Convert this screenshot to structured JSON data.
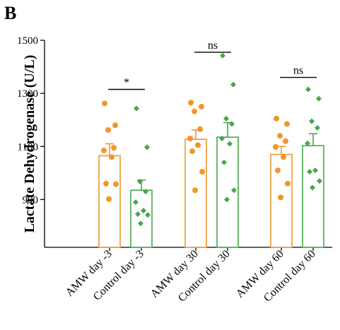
{
  "panel_label": "B",
  "chart_data": {
    "type": "bar",
    "ylabel": "Lactate Dehydrogenase (U/L)",
    "xlabel": "",
    "ylim": [
      720,
      1500
    ],
    "yticks": [
      900,
      1100,
      1300,
      1500
    ],
    "grid": false,
    "categories": [
      "AMW day -3",
      "Control day -3",
      "AMW day 30",
      "Control day 30",
      "AMW day 60",
      "Control day 60"
    ],
    "bars": [
      {
        "category": "AMW day -3",
        "group": "AMW",
        "mean": 1065,
        "sem": 45,
        "points": [
          1262,
          1180,
          1162,
          1095,
          1085,
          1060,
          960,
          958,
          902
        ]
      },
      {
        "category": "Control day -3",
        "group": "Control",
        "mean": 935,
        "sem": 38,
        "points": [
          1243,
          1097,
          968,
          930,
          890,
          858,
          845,
          842,
          810
        ]
      },
      {
        "category": "AMW day 30",
        "group": "AMW",
        "mean": 1127,
        "sem": 35,
        "points": [
          1265,
          1250,
          1232,
          1165,
          1130,
          1105,
          1082,
          1005,
          935
        ]
      },
      {
        "category": "Control day 30",
        "group": "Control",
        "mean": 1135,
        "sem": 55,
        "points": [
          1442,
          1333,
          1205,
          1185,
          1130,
          1110,
          1040,
          935,
          900
        ]
      },
      {
        "category": "AMW day 60",
        "group": "AMW",
        "mean": 1070,
        "sem": 30,
        "points": [
          1205,
          1185,
          1140,
          1120,
          1098,
          1060,
          1010,
          960,
          908
        ]
      },
      {
        "category": "Control day 60",
        "group": "Control",
        "mean": 1103,
        "sem": 45,
        "points": [
          1315,
          1280,
          1195,
          1170,
          1112,
          1010,
          1005,
          970,
          945
        ]
      }
    ],
    "comparisons": [
      {
        "pair": [
          0,
          1
        ],
        "label": "*",
        "y": 1315
      },
      {
        "pair": [
          2,
          3
        ],
        "label": "ns",
        "y": 1455
      },
      {
        "pair": [
          4,
          5
        ],
        "label": "ns",
        "y": 1360
      }
    ],
    "colors": {
      "AMW": "#f2962b",
      "Control": "#45a84a"
    }
  }
}
